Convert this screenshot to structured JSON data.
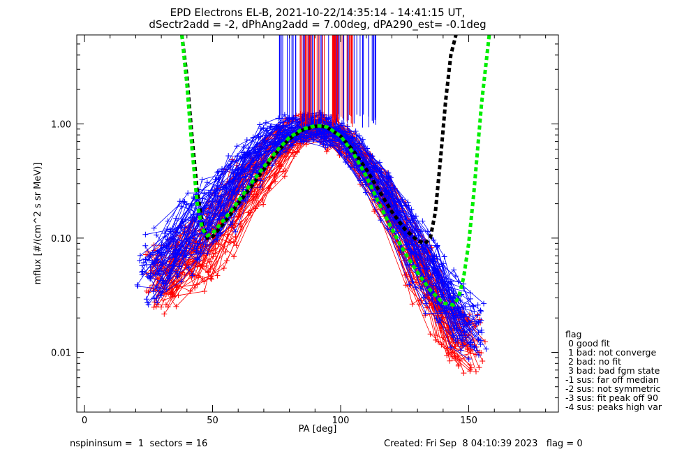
{
  "header": {
    "title_line1": "EPD Electrons EL-B, 2021-10-22/14:35:14 - 14:41:15 UT,",
    "title_line2": "dSectr2add = -2, dPhAng2add = 7.00deg, dPA290_est=  -0.1deg"
  },
  "footer": {
    "left": "nspininsum =  1  sectors = 16",
    "right": "Created: Fri Sep  8 04:10:39 2023   flag = 0"
  },
  "legend": {
    "title": "flag",
    "items": [
      " 0 good fit",
      " 1 bad: not converge",
      " 2 bad: no fit",
      " 3 bad: bad fgm state",
      "-1 sus: far off median",
      "-2 sus: not symmetric",
      "-3 sus: fit peak off 90",
      "-4 sus: peaks high var"
    ]
  },
  "colors": {
    "series_a": "#ff0000",
    "series_b": "#0000ff",
    "fit_a": "#000000",
    "fit_b": "#00ee00"
  },
  "chart_data": {
    "type": "line",
    "title": "EPD Electrons EL-B, 2021-10-22/14:35:14 - 14:41:15 UT,",
    "subtitle": "dSectr2add = -2, dPhAng2add = 7.00deg, dPA290_est=  -0.1deg",
    "xlabel": "PA [deg]",
    "ylabel": "mflux [#/(cm^2 s sr MeV)]",
    "xlim": [
      -3,
      185
    ],
    "ylim": [
      0.003,
      6
    ],
    "yscale": "log",
    "x_ticks": [
      0,
      50,
      100,
      150
    ],
    "x_tick_labels": [
      "0",
      "50",
      "100",
      "150"
    ],
    "y_ticks": [
      0.01,
      0.1,
      1.0
    ],
    "y_tick_labels": [
      "0.01",
      "0.10",
      "1.00"
    ],
    "grid": false,
    "legend_position": "right",
    "fits": [
      {
        "color": "black",
        "x": [
          38,
          40,
          42,
          44,
          46,
          48,
          50,
          55,
          60,
          65,
          70,
          75,
          80,
          85,
          90,
          93,
          95,
          100,
          105,
          110,
          115,
          120,
          125,
          130,
          133,
          135,
          137,
          139,
          141,
          143,
          145
        ],
        "y": [
          6.0,
          2.6,
          0.75,
          0.26,
          0.13,
          0.1,
          0.103,
          0.14,
          0.2,
          0.28,
          0.4,
          0.56,
          0.74,
          0.88,
          0.95,
          0.95,
          0.92,
          0.78,
          0.58,
          0.4,
          0.26,
          0.17,
          0.12,
          0.095,
          0.09,
          0.1,
          0.17,
          0.5,
          1.6,
          4.0,
          6.0
        ]
      },
      {
        "color": "green",
        "x": [
          38,
          40,
          42,
          44,
          46,
          48,
          50,
          55,
          60,
          65,
          70,
          75,
          80,
          85,
          90,
          93,
          95,
          100,
          105,
          110,
          115,
          120,
          125,
          130,
          135,
          140,
          144,
          146,
          148,
          150,
          152,
          155,
          158
        ],
        "y": [
          6.0,
          2.2,
          0.6,
          0.2,
          0.12,
          0.105,
          0.11,
          0.15,
          0.21,
          0.3,
          0.42,
          0.58,
          0.76,
          0.9,
          0.96,
          0.96,
          0.93,
          0.78,
          0.55,
          0.35,
          0.2,
          0.12,
          0.075,
          0.05,
          0.035,
          0.027,
          0.026,
          0.03,
          0.045,
          0.09,
          0.25,
          1.5,
          6.0
        ]
      }
    ],
    "series": [
      {
        "color": "red",
        "x": [
          25,
          30,
          35,
          40,
          45,
          50,
          55,
          60,
          65,
          70,
          75,
          80,
          85,
          90,
          95,
          100,
          105,
          110,
          115,
          120,
          125,
          130,
          135,
          140,
          145,
          150,
          155
        ],
        "y": [
          0.045,
          0.04,
          0.05,
          0.06,
          0.08,
          0.1,
          0.14,
          0.2,
          0.3,
          0.42,
          0.6,
          0.78,
          0.9,
          0.95,
          0.92,
          0.8,
          0.6,
          0.42,
          0.28,
          0.17,
          0.1,
          0.06,
          0.035,
          0.02,
          0.015,
          0.012,
          0.012
        ]
      },
      {
        "color": "blue",
        "x": [
          22,
          25,
          30,
          35,
          40,
          45,
          50,
          55,
          60,
          65,
          70,
          75,
          80,
          85,
          90,
          95,
          100,
          105,
          110,
          115,
          120,
          125,
          130,
          135,
          140,
          145,
          150,
          155
        ],
        "y": [
          0.04,
          0.05,
          0.06,
          0.08,
          0.1,
          0.13,
          0.16,
          0.22,
          0.3,
          0.42,
          0.58,
          0.75,
          0.88,
          0.94,
          0.95,
          0.9,
          0.78,
          0.6,
          0.42,
          0.28,
          0.18,
          0.11,
          0.07,
          0.045,
          0.03,
          0.022,
          0.018,
          0.015
        ]
      }
    ]
  }
}
